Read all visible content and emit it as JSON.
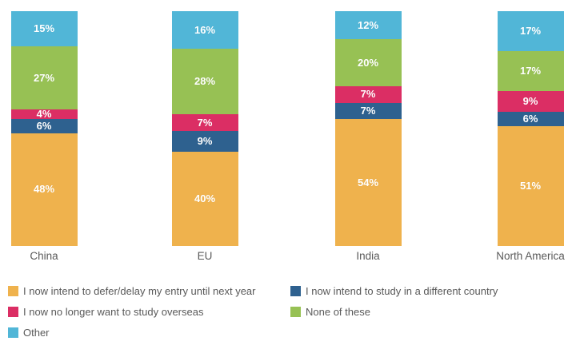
{
  "chart_data": {
    "type": "bar",
    "subtype": "stacked-100-percent-vertical",
    "title": "",
    "xlabel": "",
    "ylabel": "",
    "value_suffix": "%",
    "grid": false,
    "categories": [
      "China",
      "EU",
      "India",
      "North America"
    ],
    "series": [
      {
        "name": "I now intend to defer/delay my entry until next year",
        "color": "#EFB24D",
        "values": [
          48,
          40,
          54,
          51
        ]
      },
      {
        "name": "I now intend to study in a different country",
        "color": "#2E618F",
        "values": [
          6,
          9,
          7,
          6
        ]
      },
      {
        "name": "I now no longer want to study overseas",
        "color": "#DB2E64",
        "values": [
          4,
          7,
          7,
          9
        ]
      },
      {
        "name": "None of these",
        "color": "#97C154",
        "values": [
          27,
          28,
          20,
          17
        ]
      },
      {
        "name": "Other",
        "color": "#51B6D7",
        "values": [
          15,
          16,
          12,
          17
        ]
      }
    ],
    "stack_order_bottom_to_top": [
      "I now intend to defer/delay my entry until next year",
      "I now intend to study in a different country",
      "I now no longer want to study overseas",
      "None of these",
      "Other"
    ],
    "legend": {
      "position": "bottom",
      "columns": 2,
      "column_series_indexes": [
        [
          0,
          2,
          4
        ],
        [
          1,
          3
        ]
      ]
    },
    "colors": {
      "value_label_text": "#FFFFFF",
      "category_label_text": "#595959",
      "legend_text": "#595959",
      "background": "#FFFFFF"
    }
  }
}
